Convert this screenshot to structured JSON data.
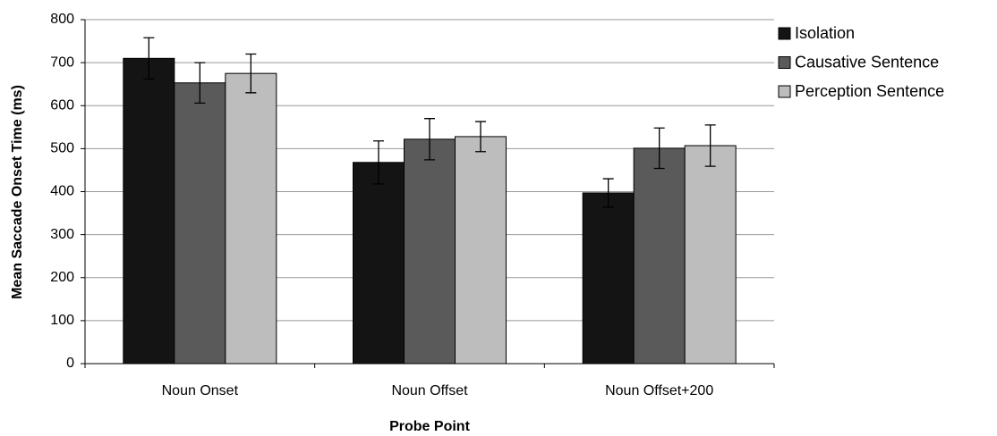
{
  "chart_data": {
    "type": "bar",
    "y_label": "Mean Saccade Onset Time (ms)",
    "x_label": "Probe Point",
    "categories": [
      "Noun Onset",
      "Noun Offset",
      "Noun Offset+200"
    ],
    "series": [
      {
        "name": "Isolation",
        "color": "#141414",
        "values": [
          710,
          468,
          397
        ],
        "errors": [
          48,
          50,
          33
        ]
      },
      {
        "name": "Causative Sentence",
        "color": "#5a5a5a",
        "values": [
          653,
          522,
          501
        ],
        "errors": [
          47,
          48,
          47
        ]
      },
      {
        "name": "Perception Sentence",
        "color": "#bdbdbd",
        "values": [
          675,
          528,
          507
        ],
        "errors": [
          45,
          35,
          48
        ]
      }
    ],
    "ylim": [
      0,
      800
    ],
    "yticks": [
      0,
      100,
      200,
      300,
      400,
      500,
      600,
      700,
      800
    ],
    "grid": true,
    "legend": "right"
  }
}
